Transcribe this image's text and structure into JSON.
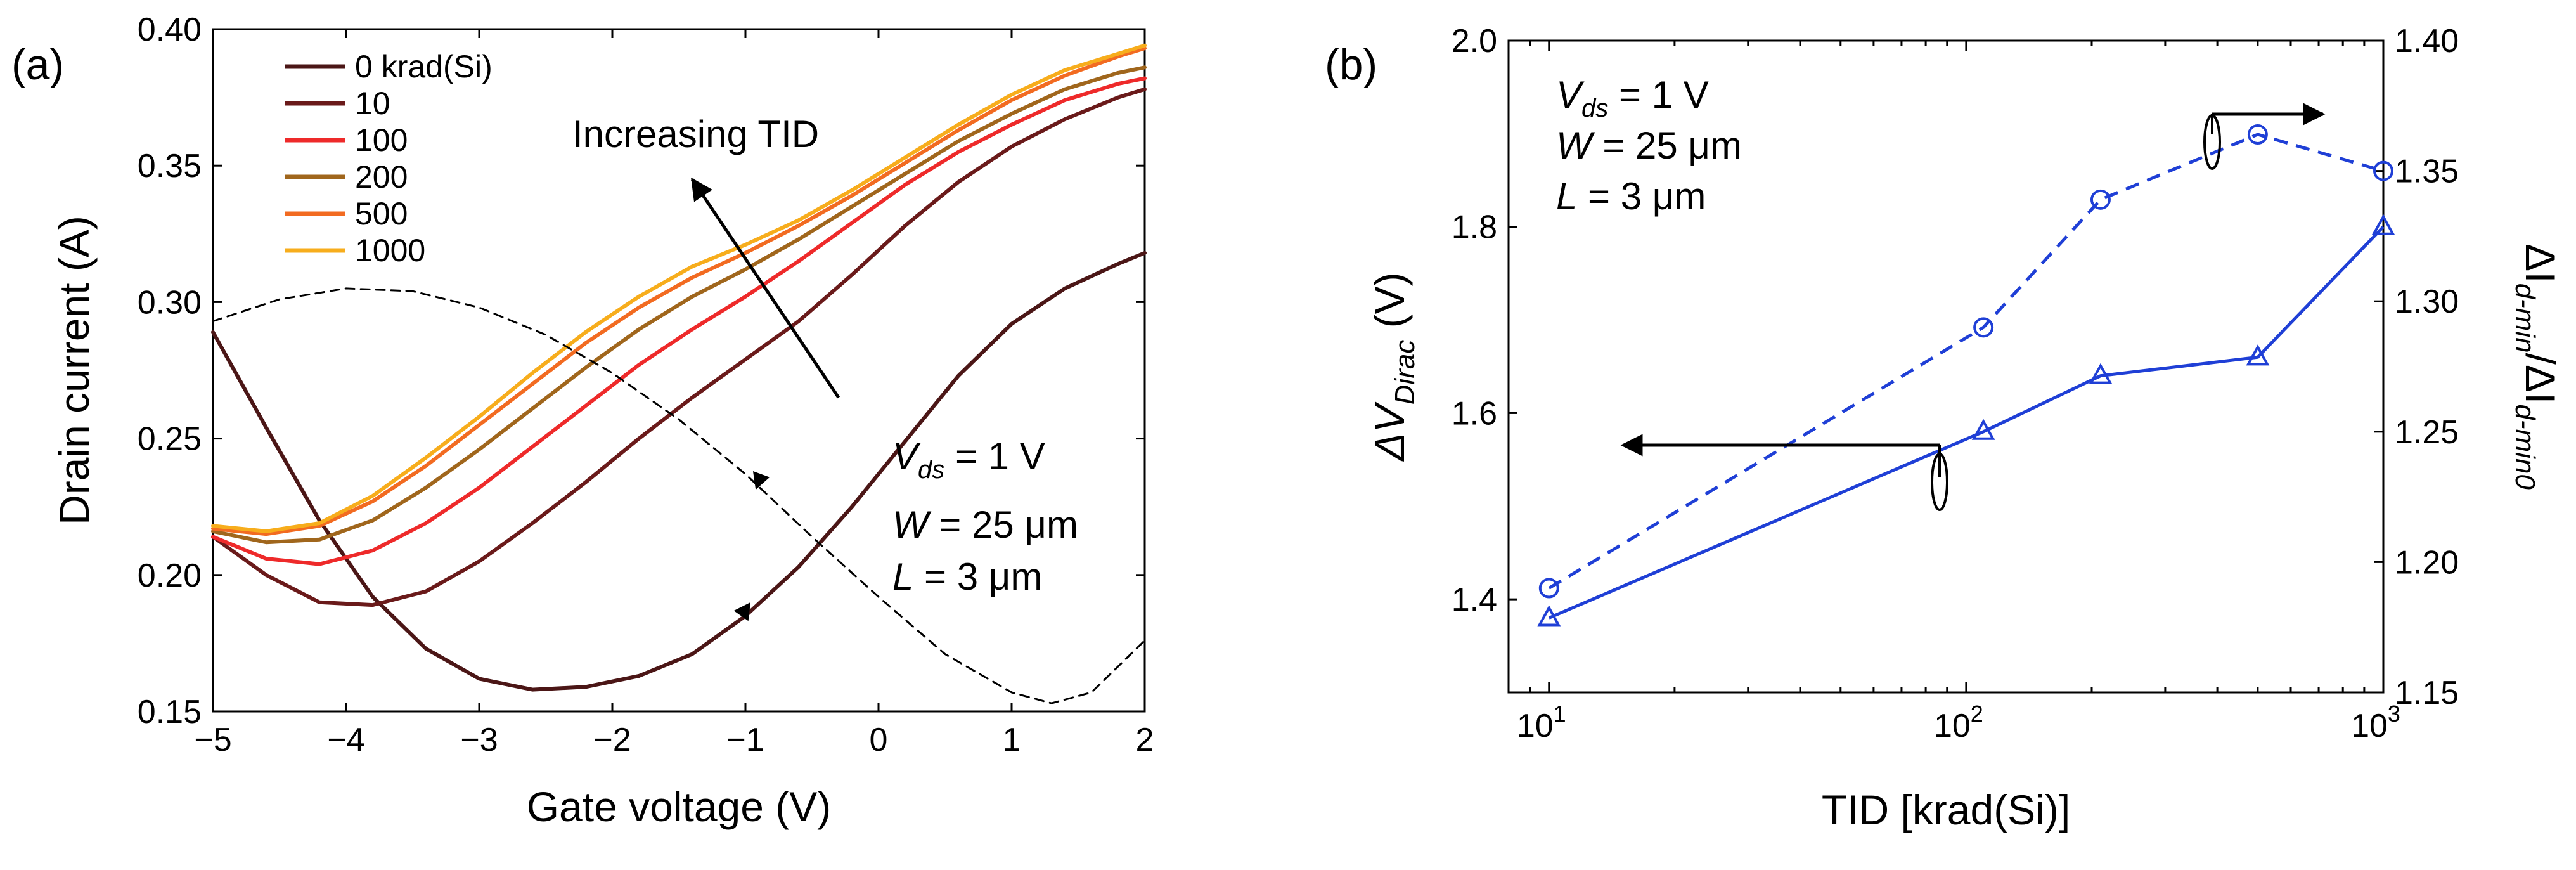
{
  "figure": {
    "panel_a_label": "(a)",
    "panel_b_label": "(b)"
  },
  "chart_data": [
    {
      "type": "line",
      "panel": "(a)",
      "xlabel": "Gate voltage (V)",
      "ylabel": "Drain current (A)",
      "xlim": [
        -5,
        2
      ],
      "ylim": [
        0.15,
        0.4
      ],
      "x_ticks": [
        "−5",
        "−4",
        "−3",
        "−2",
        "−1",
        "0",
        "1",
        "2"
      ],
      "y_ticks": [
        "0.15",
        "0.20",
        "0.25",
        "0.30",
        "0.35",
        "0.40"
      ],
      "legend_title": "",
      "legend_entries": [
        "0 krad(Si)",
        "10",
        "100",
        "200",
        "500",
        "1000"
      ],
      "grid": false,
      "series": [
        {
          "name": "0 krad(Si)",
          "color": "#4b1616",
          "x": [
            -5,
            -4.6,
            -4.2,
            -3.8,
            -3.4,
            -3.0,
            -2.6,
            -2.2,
            -1.8,
            -1.4,
            -1.0,
            -0.6,
            -0.2,
            0.2,
            0.6,
            1.0,
            1.4,
            1.8,
            2.0
          ],
          "y": [
            0.289,
            0.254,
            0.22,
            0.192,
            0.173,
            0.162,
            0.158,
            0.159,
            0.163,
            0.171,
            0.185,
            0.203,
            0.225,
            0.249,
            0.273,
            0.292,
            0.305,
            0.314,
            0.318
          ]
        },
        {
          "name": "10",
          "color": "#6a1a1a",
          "x": [
            -5,
            -4.6,
            -4.2,
            -3.8,
            -3.4,
            -3.0,
            -2.6,
            -2.2,
            -1.8,
            -1.4,
            -1.0,
            -0.6,
            -0.2,
            0.2,
            0.6,
            1.0,
            1.4,
            1.8,
            2.0
          ],
          "y": [
            0.214,
            0.2,
            0.19,
            0.189,
            0.194,
            0.205,
            0.219,
            0.234,
            0.25,
            0.265,
            0.279,
            0.293,
            0.31,
            0.328,
            0.344,
            0.357,
            0.367,
            0.375,
            0.378
          ]
        },
        {
          "name": "100",
          "color": "#ee2a2a",
          "x": [
            -5,
            -4.6,
            -4.2,
            -3.8,
            -3.4,
            -3.0,
            -2.6,
            -2.2,
            -1.8,
            -1.4,
            -1.0,
            -0.6,
            -0.2,
            0.2,
            0.6,
            1.0,
            1.4,
            1.8,
            2.0
          ],
          "y": [
            0.214,
            0.206,
            0.204,
            0.209,
            0.219,
            0.232,
            0.247,
            0.262,
            0.277,
            0.29,
            0.302,
            0.315,
            0.329,
            0.343,
            0.355,
            0.365,
            0.374,
            0.38,
            0.382
          ]
        },
        {
          "name": "200",
          "color": "#a0661c",
          "x": [
            -5,
            -4.6,
            -4.2,
            -3.8,
            -3.4,
            -3.0,
            -2.6,
            -2.2,
            -1.8,
            -1.4,
            -1.0,
            -0.6,
            -0.2,
            0.2,
            0.6,
            1.0,
            1.4,
            1.8,
            2.0
          ],
          "y": [
            0.216,
            0.212,
            0.213,
            0.22,
            0.232,
            0.246,
            0.261,
            0.276,
            0.29,
            0.302,
            0.312,
            0.323,
            0.335,
            0.347,
            0.359,
            0.369,
            0.378,
            0.384,
            0.386
          ]
        },
        {
          "name": "500",
          "color": "#f26b21",
          "x": [
            -5,
            -4.6,
            -4.2,
            -3.8,
            -3.4,
            -3.0,
            -2.6,
            -2.2,
            -1.8,
            -1.4,
            -1.0,
            -0.6,
            -0.2,
            0.2,
            0.6,
            1.0,
            1.4,
            1.8,
            2.0
          ],
          "y": [
            0.217,
            0.215,
            0.218,
            0.227,
            0.24,
            0.255,
            0.27,
            0.285,
            0.298,
            0.309,
            0.318,
            0.328,
            0.339,
            0.351,
            0.363,
            0.374,
            0.383,
            0.39,
            0.393
          ]
        },
        {
          "name": "1000",
          "color": "#f7ad1c",
          "x": [
            -5,
            -4.6,
            -4.2,
            -3.8,
            -3.4,
            -3.0,
            -2.6,
            -2.2,
            -1.8,
            -1.4,
            -1.0,
            -0.6,
            -0.2,
            0.2,
            0.6,
            1.0,
            1.4,
            1.8,
            2.0
          ],
          "y": [
            0.218,
            0.216,
            0.219,
            0.229,
            0.243,
            0.258,
            0.274,
            0.289,
            0.302,
            0.313,
            0.321,
            0.33,
            0.341,
            0.353,
            0.365,
            0.376,
            0.385,
            0.391,
            0.394
          ]
        },
        {
          "name": "",
          "color": "#000000",
          "dashed": true,
          "x": [
            -5,
            -4.5,
            -4.0,
            -3.5,
            -3.0,
            -2.5,
            -2.0,
            -1.5,
            -1.0,
            -0.5,
            0.0,
            0.5,
            1.0,
            1.3,
            1.6,
            2.0
          ],
          "y": [
            0.293,
            0.301,
            0.305,
            0.304,
            0.298,
            0.288,
            0.274,
            0.257,
            0.237,
            0.214,
            0.192,
            0.171,
            0.157,
            0.153,
            0.157,
            0.176
          ]
        }
      ],
      "annotations": [
        {
          "text": "Increasing TID",
          "arrow_from": [
            -0.3,
            0.265
          ],
          "arrow_to": [
            -1.4,
            0.345
          ]
        },
        {
          "text_parts": [
            "V",
            "ds",
            " = 1 V"
          ],
          "at": [
            -0.35,
            0.239
          ]
        },
        {
          "text_parts": [
            "W",
            " = 25 μm"
          ],
          "at": [
            -0.35,
            0.214
          ]
        },
        {
          "text_parts": [
            "L",
            " = 3 μm"
          ],
          "at": [
            -0.35,
            0.191
          ]
        }
      ],
      "arrowheads": [
        {
          "series": "dashed",
          "x": -0.9,
          "y": 0.232
        },
        {
          "series": "0 krad(Si)",
          "x": -1.0,
          "y": 0.185
        }
      ]
    },
    {
      "type": "line",
      "panel": "(b)",
      "xlabel": "TID [krad(Si)]",
      "xscale": "log",
      "xlim": [
        8,
        1000
      ],
      "x_ticks": [
        {
          "value": 10,
          "base": "10",
          "exp": "1"
        },
        {
          "value": 100,
          "base": "10",
          "exp": "2"
        },
        {
          "value": 1000,
          "base": "10",
          "exp": "3"
        }
      ],
      "ylabel_left_parts": [
        "ΔV",
        "Dirac",
        " (V)"
      ],
      "ylim_left": [
        1.3,
        2.0
      ],
      "y_ticks_left": [
        "1.4",
        "1.6",
        "1.8",
        "2.0"
      ],
      "ylabel_right_parts": [
        "ΔI",
        "d-min",
        "/ΔI",
        "d-min0"
      ],
      "ylim_right": [
        1.15,
        1.4
      ],
      "y_ticks_right": [
        "1.15",
        "1.20",
        "1.25",
        "1.30",
        "1.35",
        "1.40"
      ],
      "grid": false,
      "color": "#1f3fd6",
      "series": [
        {
          "name": "",
          "axis": "left",
          "marker": "triangle",
          "line": "solid",
          "x": [
            10,
            110,
            210,
            500,
            1000
          ],
          "y": [
            1.38,
            1.58,
            1.64,
            1.66,
            1.8
          ]
        },
        {
          "name": "",
          "axis": "right",
          "marker": "circle",
          "line": "dashed",
          "x": [
            10,
            110,
            210,
            500,
            1000
          ],
          "y": [
            1.19,
            1.29,
            1.339,
            1.364,
            1.35
          ]
        }
      ],
      "annotations": [
        {
          "text_parts": [
            "V",
            "ds",
            " = 1 V"
          ]
        },
        {
          "text_parts": [
            "W",
            " = 25 μm"
          ]
        },
        {
          "text_parts": [
            "L",
            " = 3 μm"
          ]
        }
      ]
    }
  ]
}
